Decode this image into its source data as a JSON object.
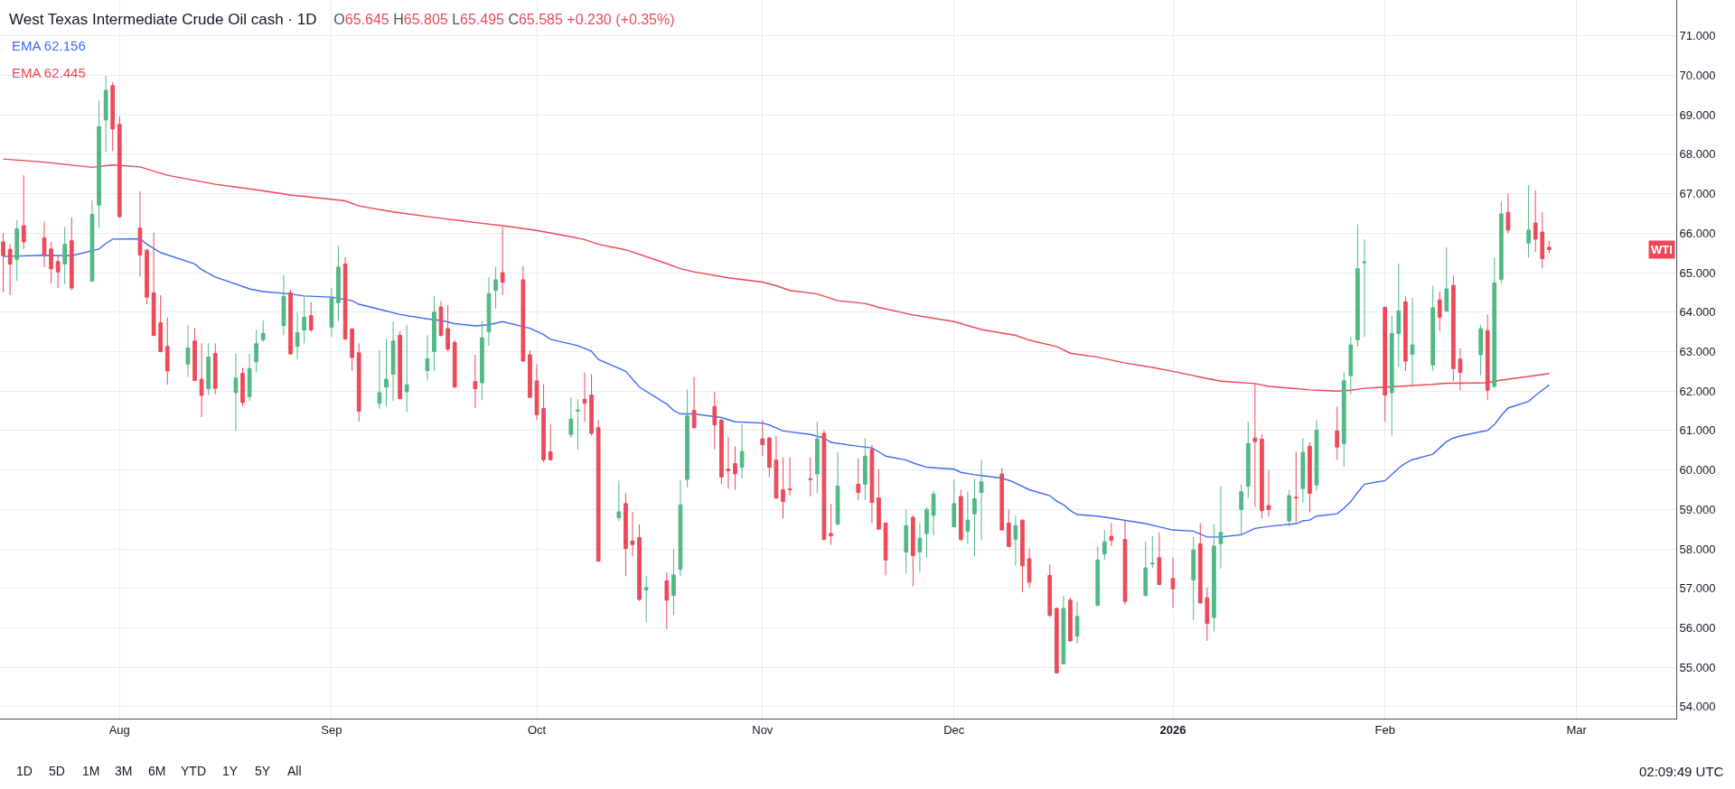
{
  "chart_data": {
    "type": "candlestick",
    "title": "West Texas Intermediate Crude Oil cash · 1D",
    "subtitle": "O65.645 H65.805 L65.495 C65.585 +0.230 (+0.35%)",
    "x": [
      "2025-07-15",
      "2025-07-16",
      "2025-07-17",
      "2025-07-18",
      "2025-07-21",
      "2025-07-22",
      "2025-07-23",
      "2025-07-24",
      "2025-07-25",
      "2025-07-28",
      "2025-07-29",
      "2025-07-30",
      "2025-07-31",
      "2025-08-01",
      "2025-08-04",
      "2025-08-05",
      "2025-08-06",
      "2025-08-07",
      "2025-08-08",
      "2025-08-11",
      "2025-08-12",
      "2025-08-13",
      "2025-08-14",
      "2025-08-15",
      "2025-08-18",
      "2025-08-19",
      "2025-08-20",
      "2025-08-21",
      "2025-08-22",
      "2025-08-25",
      "2025-08-26",
      "2025-08-27",
      "2025-08-28",
      "2025-08-29",
      "2025-09-01",
      "2025-09-02",
      "2025-09-03",
      "2025-09-04",
      "2025-09-05",
      "2025-09-08",
      "2025-09-09",
      "2025-09-10",
      "2025-09-11",
      "2025-09-12",
      "2025-09-15",
      "2025-09-16",
      "2025-09-17",
      "2025-09-18",
      "2025-09-19",
      "2025-09-22",
      "2025-09-23",
      "2025-09-24",
      "2025-09-25",
      "2025-09-26",
      "2025-09-29",
      "2025-09-30",
      "2025-10-01",
      "2025-10-02",
      "2025-10-03",
      "2025-10-06",
      "2025-10-07",
      "2025-10-08",
      "2025-10-09",
      "2025-10-10",
      "2025-10-13",
      "2025-10-14",
      "2025-10-15",
      "2025-10-16",
      "2025-10-17",
      "2025-10-20",
      "2025-10-21",
      "2025-10-22",
      "2025-10-23",
      "2025-10-24",
      "2025-10-27",
      "2025-10-28",
      "2025-10-29",
      "2025-10-30",
      "2025-10-31",
      "2025-11-03",
      "2025-11-04",
      "2025-11-05",
      "2025-11-06",
      "2025-11-07",
      "2025-11-10",
      "2025-11-11",
      "2025-11-12",
      "2025-11-13",
      "2025-11-14",
      "2025-11-17",
      "2025-11-18",
      "2025-11-19",
      "2025-11-20",
      "2025-11-21",
      "2025-11-24",
      "2025-11-25",
      "2025-11-26",
      "2025-11-27",
      "2025-11-28",
      "2025-12-01",
      "2025-12-02",
      "2025-12-03",
      "2025-12-04",
      "2025-12-05",
      "2025-12-08",
      "2025-12-09",
      "2025-12-10",
      "2025-12-11",
      "2025-12-12",
      "2025-12-15",
      "2025-12-16",
      "2025-12-17",
      "2025-12-18",
      "2025-12-19",
      "2025-12-22",
      "2025-12-23",
      "2025-12-24",
      "2025-12-26",
      "2025-12-29",
      "2025-12-30",
      "2025-12-31",
      "2026-01-02",
      "2026-01-05",
      "2026-01-06",
      "2026-01-07",
      "2026-01-08",
      "2026-01-09",
      "2026-01-12",
      "2026-01-13",
      "2026-01-14",
      "2026-01-15",
      "2026-01-16",
      "2026-01-19",
      "2026-01-20",
      "2026-01-21",
      "2026-01-22",
      "2026-01-23",
      "2026-01-26",
      "2026-01-27",
      "2026-01-28",
      "2026-01-29",
      "2026-01-30",
      "2026-02-02",
      "2026-02-03",
      "2026-02-04",
      "2026-02-05",
      "2026-02-06",
      "2026-02-09",
      "2026-02-10",
      "2026-02-11",
      "2026-02-12",
      "2026-02-13",
      "2026-02-16",
      "2026-02-17",
      "2026-02-18",
      "2026-02-19",
      "2026-02-20",
      "2026-02-23",
      "2026-02-24",
      "2026-02-25",
      "2026-02-26"
    ],
    "ohlc": [
      [
        65.78,
        66.0,
        64.5,
        65.43
      ],
      [
        65.59,
        65.72,
        64.43,
        65.22
      ],
      [
        65.34,
        66.33,
        64.79,
        66.11
      ],
      [
        66.19,
        67.47,
        65.6,
        65.78
      ],
      [
        65.88,
        66.3,
        65.14,
        65.45
      ],
      [
        65.6,
        65.78,
        64.73,
        65.1
      ],
      [
        65.28,
        65.43,
        64.61,
        65.02
      ],
      [
        65.22,
        66.16,
        64.7,
        65.72
      ],
      [
        65.81,
        66.4,
        64.55,
        64.61
      ],
      [
        64.79,
        66.83,
        64.76,
        66.48
      ],
      [
        66.71,
        69.36,
        66.13,
        68.7
      ],
      [
        68.87,
        69.98,
        68.06,
        69.62
      ],
      [
        69.74,
        69.83,
        68.08,
        68.64
      ],
      [
        68.76,
        68.96,
        66.38,
        66.42
      ],
      [
        66.13,
        67.06,
        64.9,
        65.45
      ],
      [
        65.57,
        65.6,
        64.2,
        64.38
      ],
      [
        64.49,
        66.01,
        63.39,
        63.41
      ],
      [
        63.73,
        64.43,
        62.98,
        63.0
      ],
      [
        63.13,
        63.87,
        62.16,
        62.51
      ],
      [
        62.68,
        63.68,
        62.36,
        63.09
      ],
      [
        63.27,
        63.59,
        62.25,
        62.27
      ],
      [
        62.3,
        63.21,
        61.34,
        61.89
      ],
      [
        62.06,
        63.21,
        61.89,
        62.86
      ],
      [
        62.95,
        63.21,
        61.92,
        62.07
      ],
      [
        61.96,
        62.95,
        60.99,
        62.33
      ],
      [
        62.45,
        62.59,
        61.61,
        61.71
      ],
      [
        61.86,
        62.94,
        61.75,
        62.57
      ],
      [
        62.74,
        63.56,
        62.47,
        63.2
      ],
      [
        63.3,
        63.79,
        63.25,
        63.46
      ],
      [
        63.66,
        64.94,
        63.41,
        64.4
      ],
      [
        64.49,
        64.57,
        62.92,
        62.94
      ],
      [
        63.13,
        63.99,
        62.8,
        63.48
      ],
      [
        63.55,
        64.41,
        63.21,
        63.87
      ],
      [
        63.91,
        64.26,
        63.5,
        63.55
      ],
      [
        63.62,
        64.61,
        63.38,
        64.36
      ],
      [
        64.24,
        65.68,
        63.77,
        65.14
      ],
      [
        65.22,
        65.39,
        63.3,
        63.32
      ],
      [
        63.57,
        63.6,
        62.51,
        62.85
      ],
      [
        62.97,
        63.21,
        61.22,
        61.49
      ],
      [
        61.69,
        63.03,
        61.55,
        61.96
      ],
      [
        62.1,
        63.32,
        61.61,
        62.3
      ],
      [
        62.43,
        63.76,
        61.75,
        63.27
      ],
      [
        63.41,
        63.52,
        61.78,
        61.81
      ],
      [
        61.98,
        63.68,
        61.46,
        62.16
      ],
      [
        62.52,
        63.41,
        62.27,
        62.82
      ],
      [
        63.0,
        64.4,
        62.51,
        64.0
      ],
      [
        64.13,
        64.28,
        63.38,
        63.41
      ],
      [
        63.58,
        64.18,
        63.01,
        63.06
      ],
      [
        63.23,
        63.29,
        62.08,
        62.1
      ],
      [
        62.24,
        62.92,
        61.57,
        62.06
      ],
      [
        62.21,
        63.77,
        61.77,
        63.35
      ],
      [
        63.5,
        64.88,
        63.15,
        64.47
      ],
      [
        64.55,
        65.14,
        64.09,
        64.82
      ],
      [
        65.0,
        66.16,
        64.43,
        64.76
      ],
      [
        64.82,
        65.17,
        62.74,
        62.76
      ],
      [
        62.92,
        63.03,
        61.82,
        61.84
      ],
      [
        62.26,
        62.68,
        61.26,
        61.4
      ],
      [
        61.56,
        62.17,
        60.2,
        60.26
      ],
      [
        60.46,
        61.16,
        60.23,
        60.26
      ],
      [
        60.9,
        61.84,
        60.82,
        61.29
      ],
      [
        61.49,
        61.79,
        60.52,
        61.52
      ],
      [
        61.79,
        62.47,
        61.22,
        61.69
      ],
      [
        61.9,
        62.43,
        60.87,
        60.93
      ],
      [
        61.07,
        61.26,
        57.67,
        57.69
      ],
      [
        58.79,
        59.73,
        58.71,
        58.94
      ],
      [
        59.15,
        59.41,
        57.31,
        58.01
      ],
      [
        58.2,
        58.94,
        57.81,
        58.11
      ],
      [
        58.29,
        58.62,
        56.68,
        56.72
      ],
      [
        56.96,
        57.31,
        56.14,
        57.02
      ],
      [
        57.19,
        57.4,
        55.97,
        56.7
      ],
      [
        56.82,
        57.99,
        56.32,
        57.34
      ],
      [
        57.48,
        59.74,
        57.31,
        59.11
      ],
      [
        59.76,
        62.04,
        59.56,
        61.37
      ],
      [
        61.51,
        62.36,
        61.05,
        61.07
      ],
      [
        61.61,
        61.98,
        60.52,
        61.14
      ],
      [
        61.26,
        61.3,
        59.64,
        59.82
      ],
      [
        60.02,
        60.84,
        59.53,
        59.98
      ],
      [
        60.16,
        60.6,
        59.5,
        59.9
      ],
      [
        60.07,
        61.16,
        59.79,
        60.47
      ],
      [
        60.79,
        61.26,
        60.35,
        60.64
      ],
      [
        60.81,
        60.84,
        59.82,
        60.07
      ],
      [
        60.25,
        60.87,
        59.27,
        59.29
      ],
      [
        59.5,
        60.32,
        58.77,
        59.2
      ],
      [
        59.52,
        60.32,
        59.35,
        59.5
      ],
      [
        59.78,
        60.32,
        59.33,
        59.76
      ],
      [
        59.9,
        61.22,
        59.41,
        60.79
      ],
      [
        60.93,
        61.0,
        58.22,
        58.24
      ],
      [
        58.39,
        59.14,
        58.1,
        58.33
      ],
      [
        58.63,
        60.46,
        58.6,
        59.59
      ],
      [
        59.64,
        60.29,
        59.24,
        59.43
      ],
      [
        59.64,
        60.81,
        59.24,
        60.35
      ],
      [
        60.52,
        60.64,
        58.65,
        59.18
      ],
      [
        59.29,
        60.02,
        58.48,
        58.5
      ],
      [
        58.65,
        58.68,
        57.33,
        57.72
      ],
      [
        57.92,
        59.0,
        57.37,
        58.59
      ],
      [
        58.8,
        58.85,
        57.05,
        57.83
      ],
      [
        57.92,
        58.65,
        57.42,
        58.27
      ],
      [
        58.39,
        59.06,
        57.78,
        59.0
      ],
      [
        58.85,
        59.47,
        58.34,
        59.39
      ],
      [
        58.56,
        59.76,
        58.54,
        59.15
      ],
      [
        59.33,
        59.5,
        58.2,
        58.24
      ],
      [
        58.45,
        59.45,
        58.12,
        58.73
      ],
      [
        58.89,
        59.78,
        57.81,
        59.27
      ],
      [
        59.43,
        60.25,
        58.22,
        59.7
      ],
      [
        59.9,
        60.05,
        58.46,
        58.48
      ],
      [
        58.65,
        59.0,
        58.04,
        58.06
      ],
      [
        58.24,
        58.85,
        57.57,
        58.59
      ],
      [
        58.73,
        58.75,
        56.9,
        57.57
      ],
      [
        57.75,
        58.01,
        57.02,
        57.16
      ],
      [
        57.33,
        57.6,
        56.26,
        56.32
      ],
      [
        56.49,
        56.52,
        54.84,
        54.86
      ],
      [
        55.09,
        56.81,
        55.07,
        56.49
      ],
      [
        56.7,
        56.76,
        55.65,
        55.67
      ],
      [
        55.79,
        56.67,
        55.61,
        56.29
      ],
      [
        56.57,
        58.07,
        56.55,
        57.72
      ],
      [
        57.87,
        58.48,
        57.72,
        58.18
      ],
      [
        58.32,
        58.65,
        58.07,
        58.22
      ],
      [
        58.24,
        58.71,
        56.58,
        56.67
      ],
      [
        56.82,
        58.18,
        56.8,
        57.52
      ],
      [
        57.62,
        58.32,
        57.52,
        57.64
      ],
      [
        57.78,
        58.42,
        57.08,
        57.1
      ],
      [
        57.25,
        57.78,
        56.51,
        56.99
      ],
      [
        57.21,
        58.31,
        56.2,
        57.97
      ],
      [
        58.13,
        58.65,
        56.61,
        56.63
      ],
      [
        56.76,
        57.02,
        55.67,
        56.11
      ],
      [
        56.26,
        58.62,
        55.91,
        58.07
      ],
      [
        58.13,
        59.59,
        57.5,
        58.42
      ],
      [
        59.0,
        59.64,
        58.36,
        59.45
      ],
      [
        59.59,
        61.22,
        59.29,
        60.67
      ],
      [
        60.81,
        62.18,
        59.06,
        60.72
      ],
      [
        60.78,
        60.9,
        58.77,
        58.97
      ],
      [
        59.1,
        60.0,
        58.82,
        59.0
      ],
      [
        58.71,
        59.5,
        58.57,
        59.35
      ],
      [
        59.31,
        60.46,
        58.68,
        59.29
      ],
      [
        59.53,
        60.81,
        59.18,
        60.45
      ],
      [
        60.6,
        60.7,
        58.92,
        59.41
      ],
      [
        59.62,
        61.26,
        59.47,
        61.01
      ],
      [
        60.99,
        61.6,
        60.26,
        60.58
      ],
      [
        60.67,
        62.47,
        60.09,
        62.26
      ],
      [
        62.39,
        63.38,
        61.92,
        63.17
      ],
      [
        63.3,
        66.22,
        63.13,
        65.1
      ],
      [
        65.25,
        65.84,
        63.38,
        65.27
      ],
      [
        64.12,
        64.14,
        61.22,
        61.9
      ],
      [
        61.96,
        63.91,
        60.87,
        63.46
      ],
      [
        63.46,
        65.23,
        62.6,
        64.03
      ],
      [
        64.26,
        64.4,
        62.51,
        62.76
      ],
      [
        62.93,
        64.36,
        62.1,
        63.17
      ],
      [
        62.66,
        64.67,
        62.51,
        64.11
      ],
      [
        64.31,
        64.52,
        63.52,
        63.87
      ],
      [
        64.03,
        65.64,
        64.01,
        64.59
      ],
      [
        64.68,
        64.93,
        62.25,
        62.57
      ],
      [
        62.81,
        63.08,
        62.02,
        62.47
      ],
      [
        62.92,
        63.68,
        62.4,
        63.58
      ],
      [
        63.53,
        63.94,
        61.77,
        62.02
      ],
      [
        62.12,
        65.38,
        62.06,
        64.74
      ],
      [
        64.83,
        66.81,
        64.73,
        66.49
      ],
      [
        66.53,
        67.0,
        66.0,
        66.08
      ],
      [
        65.75,
        67.22,
        65.38,
        66.08
      ],
      [
        66.26,
        67.09,
        65.53,
        65.85
      ],
      [
        66.03,
        66.53,
        65.11,
        65.355
      ],
      [
        65.645,
        65.805,
        65.495,
        65.585
      ]
    ],
    "colors": [
      "#ec4a59",
      "#ec4a59",
      "#51b886",
      "#ec4a59",
      "#ec4a59",
      "#ec4a59",
      "#ec4a59",
      "#51b886",
      "#ec4a59",
      "#51b886",
      "#51b886",
      "#51b886",
      "#ec4a59",
      "#ec4a59",
      "#ec4a59",
      "#ec4a59",
      "#ec4a59",
      "#ec4a59",
      "#ec4a59",
      "#51b886",
      "#ec4a59",
      "#ec4a59",
      "#51b886",
      "#ec4a59",
      "#51b886",
      "#ec4a59",
      "#51b886",
      "#51b886",
      "#51b886",
      "#51b886",
      "#ec4a59",
      "#51b886",
      "#51b886",
      "#ec4a59",
      "#51b886",
      "#51b886",
      "#ec4a59",
      "#ec4a59",
      "#ec4a59",
      "#51b886",
      "#51b886",
      "#51b886",
      "#ec4a59",
      "#51b886",
      "#51b886",
      "#51b886",
      "#ec4a59",
      "#ec4a59",
      "#ec4a59",
      "#ec4a59",
      "#51b886",
      "#51b886",
      "#51b886",
      "#ec4a59",
      "#ec4a59",
      "#ec4a59",
      "#ec4a59",
      "#ec4a59",
      "#ec4a59",
      "#51b886",
      "#51b886",
      "#ec4a59",
      "#ec4a59",
      "#ec4a59",
      "#51b886",
      "#ec4a59",
      "#ec4a59",
      "#ec4a59",
      "#51b886",
      "#ec4a59",
      "#51b886",
      "#51b886",
      "#51b886",
      "#ec4a59",
      "#ec4a59",
      "#ec4a59",
      "#ec4a59",
      "#ec4a59",
      "#51b886",
      "#ec4a59",
      "#ec4a59",
      "#ec4a59",
      "#ec4a59",
      "#ec4a59",
      "#ec4a59",
      "#51b886",
      "#ec4a59",
      "#ec4a59",
      "#51b886",
      "#ec4a59",
      "#51b886",
      "#ec4a59",
      "#ec4a59",
      "#ec4a59",
      "#51b886",
      "#ec4a59",
      "#51b886",
      "#51b886",
      "#51b886",
      "#51b886",
      "#ec4a59",
      "#51b886",
      "#51b886",
      "#51b886",
      "#ec4a59",
      "#ec4a59",
      "#51b886",
      "#ec4a59",
      "#ec4a59",
      "#ec4a59",
      "#ec4a59",
      "#51b886",
      "#ec4a59",
      "#51b886",
      "#51b886",
      "#51b886",
      "#ec4a59",
      "#ec4a59",
      "#51b886",
      "#51b886",
      "#ec4a59",
      "#ec4a59",
      "#51b886",
      "#ec4a59",
      "#ec4a59",
      "#51b886",
      "#51b886",
      "#51b886",
      "#51b886",
      "#ec4a59",
      "#ec4a59",
      "#ec4a59",
      "#51b886",
      "#ec4a59",
      "#51b886",
      "#ec4a59",
      "#51b886",
      "#ec4a59",
      "#51b886",
      "#51b886",
      "#51b886",
      "#51b886",
      "#ec4a59",
      "#51b886",
      "#51b886",
      "#ec4a59",
      "#51b886",
      "#51b886",
      "#ec4a59",
      "#51b886",
      "#ec4a59",
      "#ec4a59",
      "#51b886",
      "#ec4a59",
      "#51b886",
      "#51b886",
      "#ec4a59",
      "#51b886",
      "#ec4a59",
      "#ec4a59",
      "#ec4a59"
    ],
    "series": [
      {
        "type": "line",
        "name": "EMA 62.156",
        "color": "#3f6bf3",
        "x": [
          "2025-07-15",
          "2025-07-21",
          "2025-07-25",
          "2025-07-29",
          "2025-07-30",
          "2025-07-31",
          "2025-08-04",
          "2025-08-05",
          "2025-08-07",
          "2025-08-12",
          "2025-08-13",
          "2025-08-15",
          "2025-08-20",
          "2025-08-22",
          "2025-08-26",
          "2025-08-28",
          "2025-09-01",
          "2025-09-04",
          "2025-09-05",
          "2025-09-09",
          "2025-09-11",
          "2025-09-15",
          "2025-09-17",
          "2025-09-19",
          "2025-09-22",
          "2025-09-24",
          "2025-09-26",
          "2025-09-30",
          "2025-10-02",
          "2025-10-03",
          "2025-10-07",
          "2025-10-09",
          "2025-10-10",
          "2025-10-14",
          "2025-10-16",
          "2025-10-20",
          "2025-10-21",
          "2025-10-22",
          "2025-10-24",
          "2025-10-28",
          "2025-10-30",
          "2025-11-03",
          "2025-11-04",
          "2025-11-06",
          "2025-11-10",
          "2025-11-12",
          "2025-11-13",
          "2025-11-17",
          "2025-11-19",
          "2025-11-20",
          "2025-11-21",
          "2025-11-24",
          "2025-11-25",
          "2025-11-27",
          "2025-12-01",
          "2025-12-02",
          "2025-12-04",
          "2025-12-05",
          "2025-12-08",
          "2025-12-09",
          "2025-12-10",
          "2025-12-12",
          "2025-12-15",
          "2025-12-16",
          "2025-12-17",
          "2025-12-18",
          "2025-12-19",
          "2025-12-22",
          "2025-12-24",
          "2025-12-29",
          "2025-12-31",
          "2026-01-02",
          "2026-01-05",
          "2026-01-07",
          "2026-01-09",
          "2026-01-12",
          "2026-01-14",
          "2026-01-16",
          "2026-01-20",
          "2026-01-21",
          "2026-01-22",
          "2026-01-23",
          "2026-01-26",
          "2026-01-27",
          "2026-01-28",
          "2026-01-29",
          "2026-01-30",
          "2026-02-02",
          "2026-02-03",
          "2026-02-04",
          "2026-02-05",
          "2026-02-06",
          "2026-02-09",
          "2026-02-10",
          "2026-02-11",
          "2026-02-12",
          "2026-02-13",
          "2026-02-16",
          "2026-02-17",
          "2026-02-18",
          "2026-02-19",
          "2026-02-20",
          "2026-02-23",
          "2026-02-24",
          "2026-02-25",
          "2026-02-26"
        ],
        "values": [
          65.41,
          65.44,
          65.43,
          65.6,
          65.74,
          65.85,
          65.86,
          65.72,
          65.51,
          65.22,
          65.08,
          64.89,
          64.59,
          64.52,
          64.46,
          64.41,
          64.38,
          64.29,
          64.2,
          64.03,
          63.94,
          63.83,
          63.79,
          63.71,
          63.65,
          63.68,
          63.76,
          63.59,
          63.43,
          63.31,
          63.15,
          63.01,
          62.8,
          62.5,
          62.1,
          61.67,
          61.51,
          61.42,
          61.42,
          61.33,
          61.22,
          61.19,
          61.14,
          60.99,
          60.9,
          60.81,
          60.7,
          60.6,
          60.56,
          60.46,
          60.35,
          60.25,
          60.18,
          60.07,
          60.02,
          59.94,
          59.88,
          59.86,
          59.79,
          59.74,
          59.67,
          59.5,
          59.35,
          59.21,
          59.12,
          58.97,
          58.87,
          58.83,
          58.78,
          58.64,
          58.56,
          58.48,
          58.45,
          58.3,
          58.3,
          58.36,
          58.52,
          58.57,
          58.64,
          58.71,
          58.73,
          58.83,
          58.89,
          59.03,
          59.2,
          59.43,
          59.64,
          59.73,
          59.88,
          60.05,
          60.17,
          60.26,
          60.4,
          60.56,
          60.72,
          60.81,
          60.86,
          60.97,
          61.0,
          61.15,
          61.38,
          61.57,
          61.74,
          61.89,
          62.02,
          62.156
        ]
      },
      {
        "type": "line",
        "name": "EMA 62.445",
        "color": "#ef4552",
        "x": [
          "2025-07-15",
          "2025-07-21",
          "2025-07-28",
          "2025-07-31",
          "2025-08-04",
          "2025-08-08",
          "2025-08-15",
          "2025-08-21",
          "2025-08-26",
          "2025-09-01",
          "2025-09-03",
          "2025-09-05",
          "2025-09-10",
          "2025-09-16",
          "2025-09-23",
          "2025-09-26",
          "2025-10-01",
          "2025-10-06",
          "2025-10-08",
          "2025-10-10",
          "2025-10-14",
          "2025-10-20",
          "2025-10-22",
          "2025-10-24",
          "2025-10-29",
          "2025-11-03",
          "2025-11-05",
          "2025-11-07",
          "2025-11-11",
          "2025-11-14",
          "2025-11-18",
          "2025-11-20",
          "2025-11-25",
          "2025-12-01",
          "2025-12-05",
          "2025-12-10",
          "2025-12-12",
          "2025-12-16",
          "2025-12-18",
          "2025-12-22",
          "2025-12-26",
          "2025-12-30",
          "2026-01-02",
          "2026-01-07",
          "2026-01-09",
          "2026-01-14",
          "2026-01-16",
          "2026-01-20",
          "2026-01-22",
          "2026-01-26",
          "2026-01-28",
          "2026-01-30",
          "2026-02-04",
          "2026-02-09",
          "2026-02-11",
          "2026-02-12",
          "2026-02-17",
          "2026-02-19",
          "2026-02-23",
          "2026-02-26"
        ],
        "values": [
          67.88,
          67.8,
          67.67,
          67.73,
          67.68,
          67.47,
          67.24,
          67.1,
          66.97,
          66.86,
          66.82,
          66.69,
          66.54,
          66.4,
          66.25,
          66.19,
          66.07,
          65.91,
          65.84,
          65.72,
          65.58,
          65.23,
          65.1,
          65.02,
          64.87,
          64.76,
          64.67,
          64.55,
          64.46,
          64.29,
          64.22,
          64.12,
          63.93,
          63.76,
          63.56,
          63.41,
          63.29,
          63.13,
          62.96,
          62.86,
          62.71,
          62.6,
          62.5,
          62.32,
          62.25,
          62.19,
          62.12,
          62.06,
          62.03,
          62.0,
          62.02,
          62.07,
          62.12,
          62.17,
          62.2,
          62.2,
          62.21,
          62.28,
          62.37,
          62.445
        ]
      }
    ],
    "xlim": [
      "2025-07-14T12:40",
      "2026-03-16T14:00"
    ],
    "xticks": [
      {
        "value": "2025-08-01",
        "label": "Aug"
      },
      {
        "value": "2025-09-01",
        "label": "Sep"
      },
      {
        "value": "2025-10-01",
        "label": "Oct"
      },
      {
        "value": "2025-11-03",
        "label": "Nov"
      },
      {
        "value": "2025-12-01",
        "label": "Dec"
      },
      {
        "value": "2026-01-02",
        "label": "2026"
      },
      {
        "value": "2026-02-02",
        "label": "Feb"
      },
      {
        "value": "2026-03-02",
        "label": "Mar"
      }
    ],
    "ylim": [
      53.7,
      71.91
    ],
    "yticks": [
      {
        "value": 54,
        "label": "54.000"
      },
      {
        "value": 55,
        "label": "55.000"
      },
      {
        "value": 56,
        "label": "56.000"
      },
      {
        "value": 57,
        "label": "57.000"
      },
      {
        "value": 58,
        "label": "58.000"
      },
      {
        "value": 59,
        "label": "59.000"
      },
      {
        "value": 60,
        "label": "60.000"
      },
      {
        "value": 61,
        "label": "61.000"
      },
      {
        "value": 62,
        "label": "62.000"
      },
      {
        "value": 63,
        "label": "63.000"
      },
      {
        "value": 64,
        "label": "64.000"
      },
      {
        "value": 65,
        "label": "65.000"
      },
      {
        "value": 66,
        "label": "66.000"
      },
      {
        "value": 67,
        "label": "67.000"
      },
      {
        "value": 68,
        "label": "68.000"
      },
      {
        "value": 69,
        "label": "69.000"
      },
      {
        "value": 70,
        "label": "70.000"
      },
      {
        "value": 71,
        "label": "71.000"
      }
    ],
    "grid": true,
    "legend": "top left",
    "annotations": [
      {
        "text": "WTI",
        "y": 65.585
      },
      "1D",
      "5D",
      "1M",
      "3M",
      "6M",
      "YTD",
      "1Y",
      "5Y",
      "All",
      "02:09:49 UTC"
    ]
  }
}
